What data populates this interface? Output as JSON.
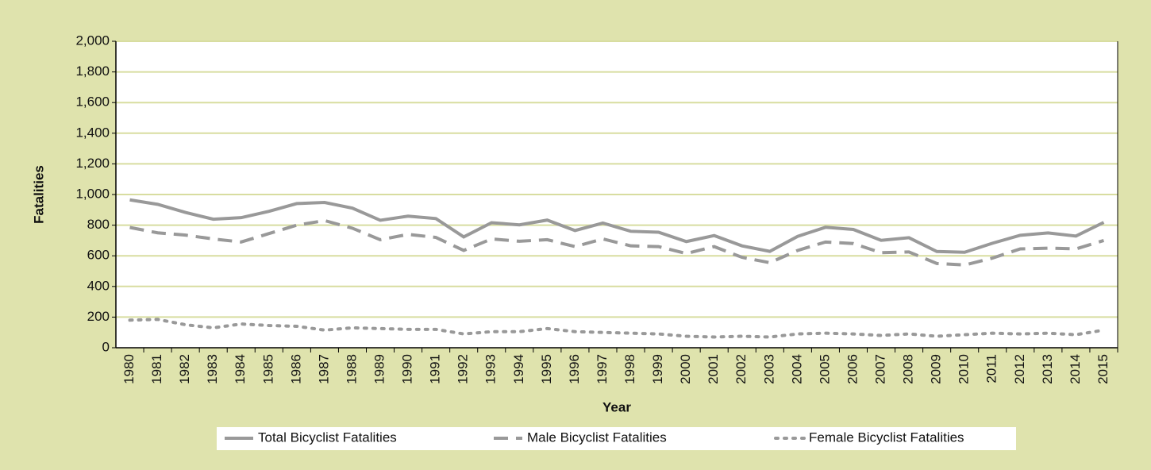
{
  "chart_data": {
    "type": "line",
    "y_label": "Fatalities",
    "x_label": "Year",
    "categories": [
      "1980",
      "1981",
      "1982",
      "1983",
      "1984",
      "1985",
      "1986",
      "1987",
      "1988",
      "1989",
      "1990",
      "1991",
      "1992",
      "1993",
      "1994",
      "1995",
      "1996",
      "1997",
      "1998",
      "1999",
      "2000",
      "2001",
      "2002",
      "2003",
      "2004",
      "2005",
      "2006",
      "2007",
      "2008",
      "2009",
      "2010",
      "2011",
      "2012",
      "2013",
      "2014",
      "2015"
    ],
    "series": [
      {
        "name": "Total Bicyclist Fatalities",
        "color": "#999999",
        "dash": "solid",
        "values": [
          965,
          936,
          883,
          839,
          849,
          890,
          941,
          948,
          911,
          832,
          859,
          843,
          723,
          816,
          802,
          833,
          765,
          814,
          760,
          754,
          693,
          732,
          665,
          629,
          727,
          786,
          772,
          701,
          718,
          628,
          623,
          682,
          734,
          749,
          729,
          818
        ]
      },
      {
        "name": "Male Bicyclist Fatalities",
        "color": "#999999",
        "dash": "dashed",
        "values": [
          785,
          750,
          735,
          710,
          690,
          745,
          800,
          830,
          780,
          705,
          740,
          720,
          635,
          710,
          695,
          705,
          660,
          710,
          665,
          660,
          615,
          660,
          590,
          555,
          635,
          690,
          680,
          620,
          625,
          550,
          540,
          585,
          645,
          650,
          645,
          700
        ]
      },
      {
        "name": "Female Bicyclist Fatalities",
        "color": "#999999",
        "dash": "dotted",
        "values": [
          180,
          185,
          150,
          130,
          155,
          145,
          140,
          115,
          130,
          125,
          120,
          120,
          90,
          105,
          105,
          125,
          105,
          100,
          95,
          90,
          75,
          70,
          75,
          70,
          90,
          95,
          90,
          80,
          90,
          75,
          85,
          95,
          90,
          95,
          85,
          115
        ]
      }
    ],
    "ylim": [
      0,
      2000
    ],
    "yticks": [
      0,
      200,
      400,
      600,
      800,
      {
        "value": 1000,
        "label": "1,000"
      },
      {
        "value": 1200,
        "label": "1,200"
      },
      {
        "value": 1400,
        "label": "1,400"
      },
      {
        "value": 1600,
        "label": "1,600"
      },
      {
        "value": 1800,
        "label": "1,800"
      },
      {
        "value": 2000,
        "label": "2,000"
      }
    ],
    "grid": true
  }
}
